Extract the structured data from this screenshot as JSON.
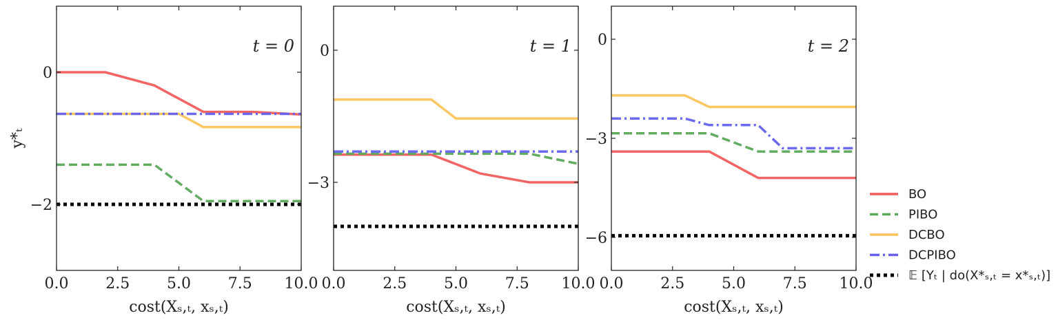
{
  "legend": {
    "placement": "outside-right-bottom",
    "entries": [
      {
        "key": "BO",
        "label": "BO",
        "color": "#f25c5c",
        "style": "solid"
      },
      {
        "key": "PIBO",
        "label": "PIBO",
        "color": "#5aa85a",
        "style": "dashed"
      },
      {
        "key": "DCBO",
        "label": "DCBO",
        "color": "#fcc35a",
        "style": "solid"
      },
      {
        "key": "DCPIBO",
        "label": "DCPIBO",
        "color": "#6461f0",
        "style": "dashdot"
      },
      {
        "key": "OPT",
        "label": "𝔼 [Yₜ | do(X*ₛ,ₜ = x*ₛ,ₜ)]",
        "color": "#000000",
        "style": "dotted"
      }
    ]
  },
  "chart_data": [
    {
      "type": "line",
      "title": "t = 0",
      "xlabel": "cost(Xₛ,ₜ, xₛ,ₜ)",
      "ylabel": "y*ₜ",
      "xlim": [
        0,
        10
      ],
      "ylim": [
        -3,
        1
      ],
      "xticks": [
        0,
        2.5,
        5,
        7.5,
        10
      ],
      "xtick_labels": [
        "0.0",
        "2.5",
        "5.0",
        "7.5",
        "10.0"
      ],
      "yticks": [
        0,
        -2
      ],
      "ytick_labels": [
        "0",
        "−2"
      ],
      "grid": false,
      "series": [
        {
          "key": "BO",
          "points": [
            [
              0,
              0
            ],
            [
              2,
              0
            ],
            [
              4,
              -0.2
            ],
            [
              6,
              -0.6
            ],
            [
              8,
              -0.6
            ],
            [
              10,
              -0.64
            ]
          ]
        },
        {
          "key": "PIBO",
          "points": [
            [
              0,
              -1.4
            ],
            [
              4,
              -1.4
            ],
            [
              6,
              -1.95
            ],
            [
              10,
              -1.95
            ]
          ]
        },
        {
          "key": "DCBO",
          "points": [
            [
              0,
              -0.63
            ],
            [
              5,
              -0.63
            ],
            [
              6,
              -0.83
            ],
            [
              10,
              -0.83
            ]
          ]
        },
        {
          "key": "DCPIBO",
          "points": [
            [
              0,
              -0.63
            ],
            [
              10,
              -0.63
            ]
          ]
        },
        {
          "key": "OPT",
          "points": [
            [
              0,
              -2
            ],
            [
              10,
              -2
            ]
          ]
        }
      ]
    },
    {
      "type": "line",
      "title": "t = 1",
      "xlabel": "cost(Xₛ,ₜ, xₛ,ₜ)",
      "ylabel": "",
      "xlim": [
        0,
        10
      ],
      "ylim": [
        -5,
        1
      ],
      "xticks": [
        0,
        2.5,
        5,
        7.5,
        10
      ],
      "xtick_labels": [
        "0.0",
        "2.5",
        "5.0",
        "7.5",
        "10.0"
      ],
      "yticks": [
        0,
        -3
      ],
      "ytick_labels": [
        "0",
        "−3"
      ],
      "grid": false,
      "series": [
        {
          "key": "BO",
          "points": [
            [
              0,
              -2.37
            ],
            [
              4,
              -2.37
            ],
            [
              6,
              -2.8
            ],
            [
              8,
              -3.0
            ],
            [
              10,
              -3.0
            ]
          ]
        },
        {
          "key": "PIBO",
          "points": [
            [
              0,
              -2.35
            ],
            [
              8,
              -2.35
            ],
            [
              10,
              -2.58
            ]
          ]
        },
        {
          "key": "DCBO",
          "points": [
            [
              0,
              -1.12
            ],
            [
              4,
              -1.12
            ],
            [
              5,
              -1.55
            ],
            [
              10,
              -1.55
            ]
          ]
        },
        {
          "key": "DCPIBO",
          "points": [
            [
              0,
              -2.3
            ],
            [
              10,
              -2.3
            ]
          ]
        },
        {
          "key": "OPT",
          "points": [
            [
              0,
              -4.0
            ],
            [
              10,
              -4.0
            ]
          ]
        }
      ]
    },
    {
      "type": "line",
      "title": "t = 2",
      "xlabel": "cost(Xₛ,ₜ, xₛ,ₜ)",
      "ylabel": "",
      "xlim": [
        0,
        10
      ],
      "ylim": [
        -7,
        1
      ],
      "xticks": [
        0,
        2.5,
        5,
        7.5,
        10
      ],
      "xtick_labels": [
        "0.0",
        "2.5",
        "5.0",
        "7.5",
        "10.0"
      ],
      "yticks": [
        0,
        -3,
        -6
      ],
      "ytick_labels": [
        "0",
        "−3",
        "−6"
      ],
      "grid": false,
      "series": [
        {
          "key": "BO",
          "points": [
            [
              0,
              -3.4
            ],
            [
              4,
              -3.4
            ],
            [
              6,
              -4.2
            ],
            [
              10,
              -4.2
            ]
          ]
        },
        {
          "key": "PIBO",
          "points": [
            [
              0,
              -2.85
            ],
            [
              4,
              -2.85
            ],
            [
              6,
              -3.4
            ],
            [
              10,
              -3.4
            ]
          ]
        },
        {
          "key": "DCBO",
          "points": [
            [
              0,
              -1.7
            ],
            [
              3,
              -1.7
            ],
            [
              4,
              -2.05
            ],
            [
              10,
              -2.05
            ]
          ]
        },
        {
          "key": "DCPIBO",
          "points": [
            [
              0,
              -2.4
            ],
            [
              3,
              -2.4
            ],
            [
              4,
              -2.6
            ],
            [
              6,
              -2.6
            ],
            [
              7,
              -3.3
            ],
            [
              10,
              -3.3
            ]
          ]
        },
        {
          "key": "OPT",
          "points": [
            [
              0,
              -5.95
            ],
            [
              10,
              -5.95
            ]
          ]
        }
      ]
    }
  ]
}
